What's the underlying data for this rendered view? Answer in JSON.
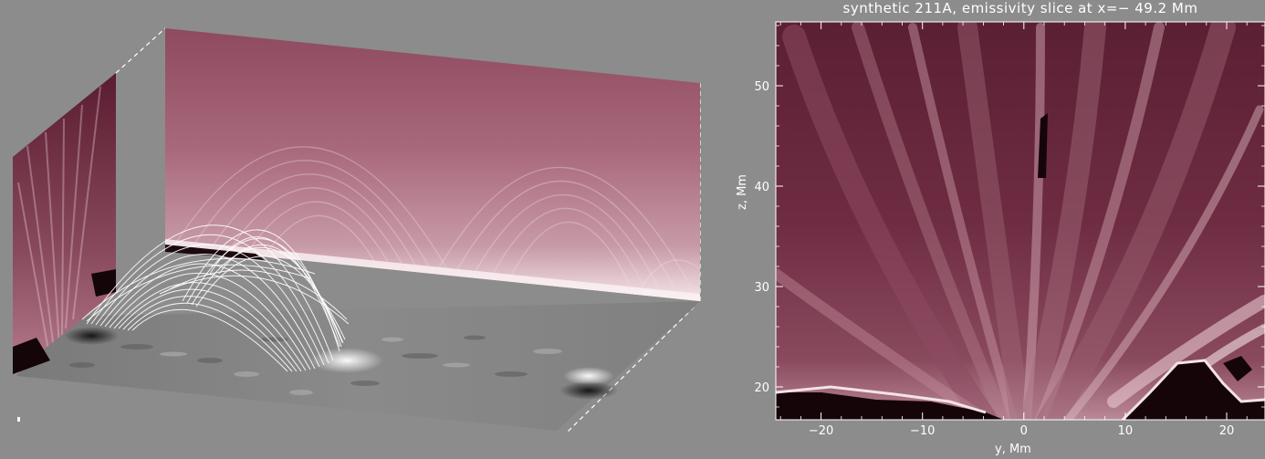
{
  "figure": {
    "title": "synthetic 211A, emissivity slice at x=− 49.2 Mm",
    "xlabel": "y, Mm",
    "ylabel": "z, Mm",
    "x_ticks": [
      "−20",
      "−10",
      "0",
      "10",
      "20"
    ],
    "y_ticks": [
      "20",
      "30",
      "40",
      "50"
    ]
  },
  "colors": {
    "background": "#8c8c8c",
    "emissivity_dark": "#3a0f1e",
    "emissivity_mid": "#9c5a6c",
    "emissivity_bright": "#f2dfe3",
    "field_lines": "#ffffff"
  }
}
